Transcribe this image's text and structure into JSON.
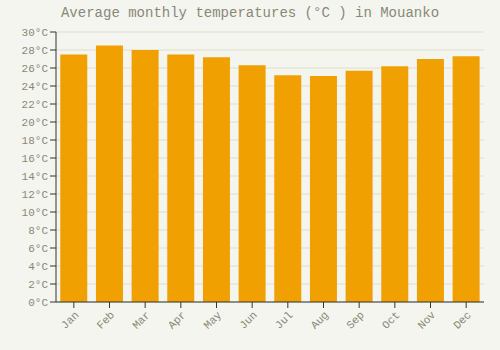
{
  "chart_data": {
    "type": "bar",
    "title": "Average monthly temperatures (°C ) in Mouanko",
    "categories": [
      "Jan",
      "Feb",
      "Mar",
      "Apr",
      "May",
      "Jun",
      "Jul",
      "Aug",
      "Sep",
      "Oct",
      "Nov",
      "Dec"
    ],
    "values": [
      27.5,
      28.5,
      28.0,
      27.5,
      27.2,
      26.3,
      25.2,
      25.1,
      25.7,
      26.2,
      27.0,
      27.3
    ],
    "color": "#F0A000",
    "ylim": [
      0,
      30
    ],
    "yticks": [
      {
        "value": 0,
        "label": "0°C"
      },
      {
        "value": 2,
        "label": "2°C"
      },
      {
        "value": 4,
        "label": "4°C"
      },
      {
        "value": 6,
        "label": "6°C"
      },
      {
        "value": 8,
        "label": "8°C"
      },
      {
        "value": 10,
        "label": "10°C"
      },
      {
        "value": 12,
        "label": "12°C"
      },
      {
        "value": 14,
        "label": "14°C"
      },
      {
        "value": 16,
        "label": "16°C"
      },
      {
        "value": 18,
        "label": "18°C"
      },
      {
        "value": 20,
        "label": "20°C"
      },
      {
        "value": 22,
        "label": "22°C"
      },
      {
        "value": 24,
        "label": "24°C"
      },
      {
        "value": 26,
        "label": "26°C"
      },
      {
        "value": 28,
        "label": "28°C"
      },
      {
        "value": 30,
        "label": "30°C"
      }
    ],
    "grid": true
  }
}
